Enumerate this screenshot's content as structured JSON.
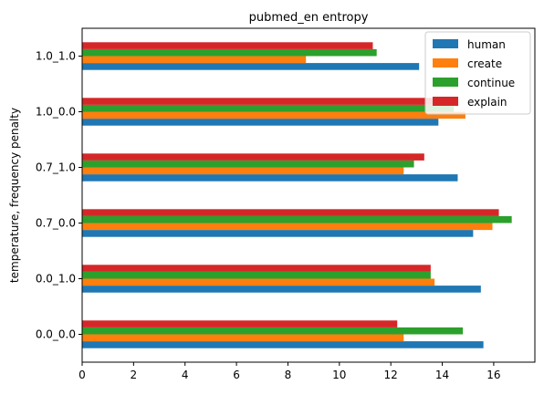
{
  "chart_data": {
    "type": "bar",
    "orientation": "horizontal",
    "title": "pubmed_en entropy",
    "xlabel": "",
    "ylabel": "temperature, frequency penalty",
    "categories": [
      "0.0_0.0",
      "0.0_1.0",
      "0.7_0.0",
      "0.7_1.0",
      "1.0_0.0",
      "1.0_1.0"
    ],
    "xlim": [
      0,
      17.6
    ],
    "xticks": [
      "0",
      "2",
      "4",
      "6",
      "8",
      "10",
      "12",
      "14",
      "16"
    ],
    "grid": false,
    "legend_position": "top-right",
    "series": [
      {
        "name": "human",
        "color": "#1f77b4",
        "values": [
          15.6,
          15.5,
          15.2,
          14.6,
          13.85,
          13.1
        ]
      },
      {
        "name": "create",
        "color": "#ff7f0e",
        "values": [
          12.5,
          13.7,
          15.95,
          12.5,
          14.9,
          8.7
        ]
      },
      {
        "name": "continue",
        "color": "#2ca02c",
        "values": [
          14.8,
          13.55,
          16.7,
          12.9,
          14.45,
          11.45
        ]
      },
      {
        "name": "explain",
        "color": "#d62728",
        "values": [
          12.25,
          13.55,
          16.2,
          13.3,
          13.7,
          11.3
        ]
      }
    ]
  }
}
